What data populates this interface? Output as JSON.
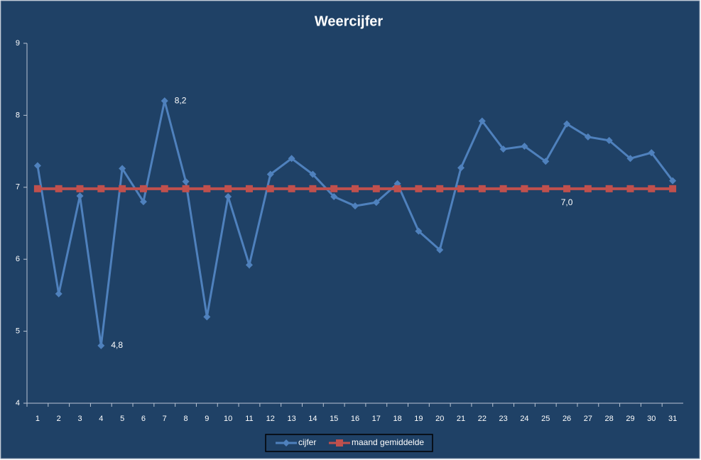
{
  "chart_data": {
    "type": "line",
    "title": "Weercijfer",
    "categories": [
      "1",
      "2",
      "3",
      "4",
      "5",
      "6",
      "7",
      "8",
      "9",
      "10",
      "11",
      "12",
      "13",
      "14",
      "15",
      "16",
      "17",
      "18",
      "19",
      "20",
      "21",
      "22",
      "23",
      "24",
      "25",
      "26",
      "27",
      "28",
      "29",
      "30",
      "31"
    ],
    "series": [
      {
        "name": "cijfer",
        "color": "#4f81bd",
        "marker": "diamond",
        "values": [
          7.3,
          5.52,
          6.88,
          4.8,
          7.26,
          6.8,
          8.2,
          7.08,
          5.2,
          6.87,
          5.92,
          7.18,
          7.4,
          7.18,
          6.87,
          6.74,
          6.79,
          7.05,
          6.39,
          6.13,
          7.27,
          7.92,
          7.53,
          7.57,
          7.36,
          7.88,
          7.7,
          7.65,
          7.4,
          7.48,
          7.09
        ],
        "value_labels": [
          null,
          null,
          null,
          "4,8",
          null,
          null,
          "8,2",
          null,
          null,
          null,
          null,
          null,
          null,
          null,
          null,
          null,
          null,
          null,
          null,
          null,
          null,
          null,
          null,
          null,
          null,
          null,
          null,
          null,
          null,
          null,
          null
        ]
      },
      {
        "name": "maand gemiddelde",
        "color": "#c0504d",
        "marker": "square",
        "values": [
          6.98,
          6.98,
          6.98,
          6.98,
          6.98,
          6.98,
          6.98,
          6.98,
          6.98,
          6.98,
          6.98,
          6.98,
          6.98,
          6.98,
          6.98,
          6.98,
          6.98,
          6.98,
          6.98,
          6.98,
          6.98,
          6.98,
          6.98,
          6.98,
          6.98,
          6.98,
          6.98,
          6.98,
          6.98,
          6.98,
          6.98
        ],
        "value_labels": [
          null,
          null,
          null,
          null,
          null,
          null,
          null,
          null,
          null,
          null,
          null,
          null,
          null,
          null,
          null,
          null,
          null,
          null,
          null,
          null,
          null,
          null,
          null,
          null,
          null,
          "7,0",
          null,
          null,
          null,
          null,
          null
        ]
      }
    ],
    "ylim": [
      4,
      9
    ],
    "yticks": [
      4,
      5,
      6,
      7,
      8,
      9
    ],
    "grid": false,
    "legend": "bottom"
  }
}
